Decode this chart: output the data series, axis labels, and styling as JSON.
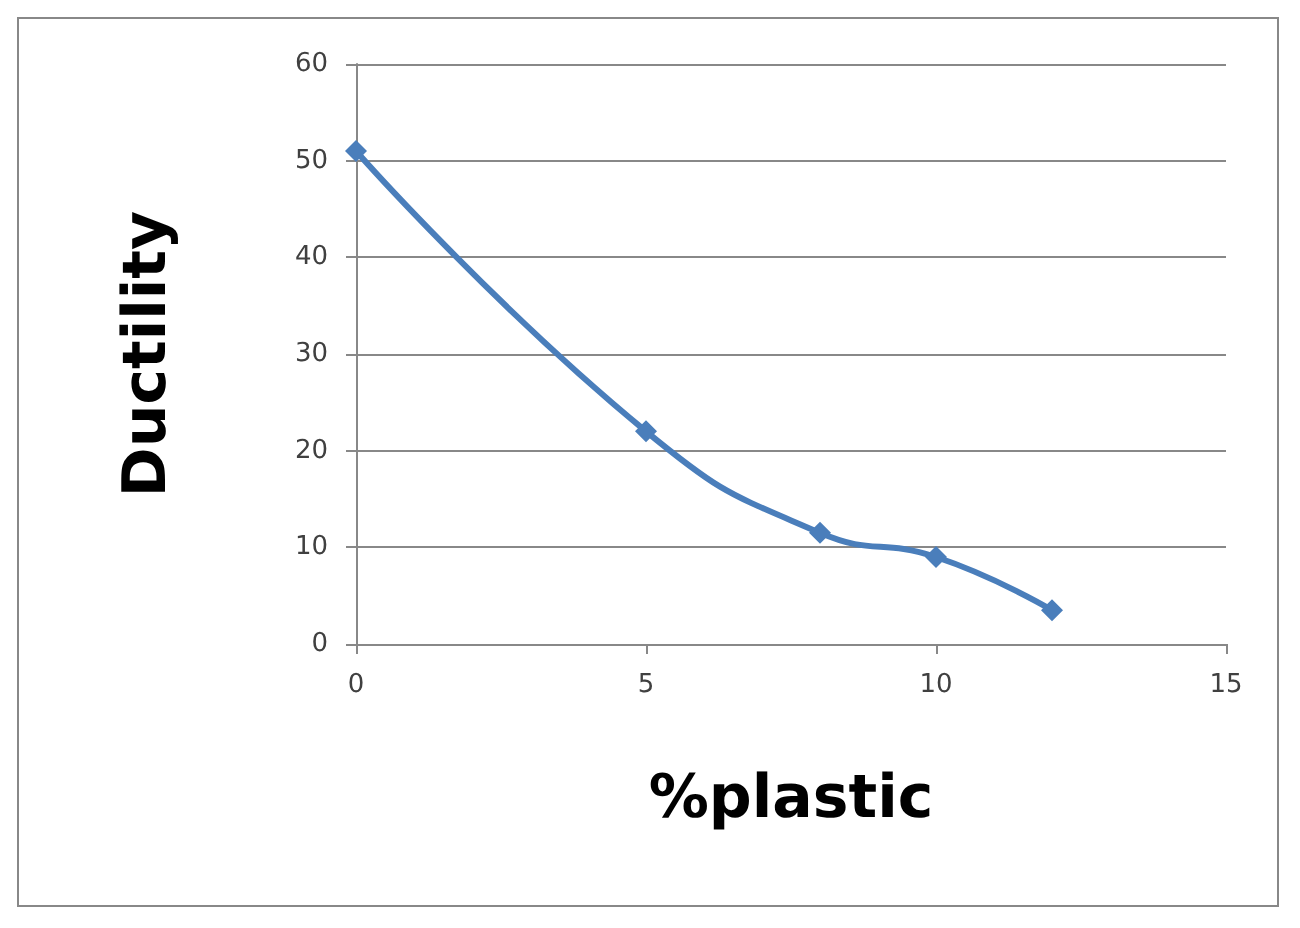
{
  "chart_data": {
    "type": "line",
    "xlabel": "%plastic",
    "ylabel": "Ductility",
    "x": [
      0,
      5,
      8,
      10,
      12
    ],
    "series": [
      {
        "color": "#4a7ebb",
        "values": [
          51,
          22,
          11.5,
          9,
          3.5
        ]
      }
    ],
    "xlim": [
      0,
      15
    ],
    "xticks": [
      0,
      5,
      10,
      15
    ],
    "ylim": [
      0,
      60
    ],
    "yticks": [
      0,
      10,
      20,
      30,
      40,
      50,
      60
    ],
    "grid": "y",
    "marker": "diamond",
    "line_style": "solid"
  }
}
